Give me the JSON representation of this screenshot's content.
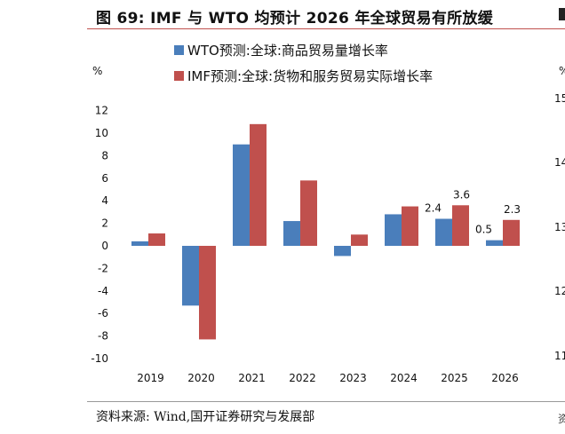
{
  "header": {
    "title": "图 69:  IMF 与 WTO 均预计 2026 年全球贸易有所放缓"
  },
  "footer": {
    "source": "资料来源:  Wind,国开证券研究与发展部"
  },
  "right_cut": {
    "ticks": [
      "15",
      "14",
      "13",
      "12",
      "11"
    ],
    "unit": "%",
    "footer_char": "资"
  },
  "colors": {
    "wto": "#4a7ebb",
    "imf": "#c0504d",
    "accent_rule": "#c0504d"
  },
  "chart_data": {
    "type": "bar",
    "unit_label": "%",
    "categories": [
      "2019",
      "2020",
      "2021",
      "2022",
      "2023",
      "2024",
      "2025",
      "2026"
    ],
    "ylim": [
      -10,
      12
    ],
    "yticks": [
      12,
      10,
      8,
      6,
      4,
      2,
      0,
      -2,
      -4,
      -6,
      -8,
      -10
    ],
    "legend_position": "top",
    "grid": false,
    "series": [
      {
        "name": "WTO预测:全球:商品贸易量增长率",
        "color": "#4a7ebb",
        "values": [
          0.4,
          -5.3,
          9.0,
          2.2,
          -0.9,
          2.8,
          2.4,
          0.5
        ]
      },
      {
        "name": "IMF预测:全球:货物和服务贸易实际增长率",
        "color": "#c0504d",
        "values": [
          1.1,
          -8.3,
          10.8,
          5.8,
          1.0,
          3.5,
          3.6,
          2.3
        ]
      }
    ],
    "data_labels": [
      {
        "series": 0,
        "index": 6,
        "text": "2.4"
      },
      {
        "series": 1,
        "index": 6,
        "text": "3.6"
      },
      {
        "series": 0,
        "index": 7,
        "text": "0.5"
      },
      {
        "series": 1,
        "index": 7,
        "text": "2.3"
      }
    ]
  }
}
